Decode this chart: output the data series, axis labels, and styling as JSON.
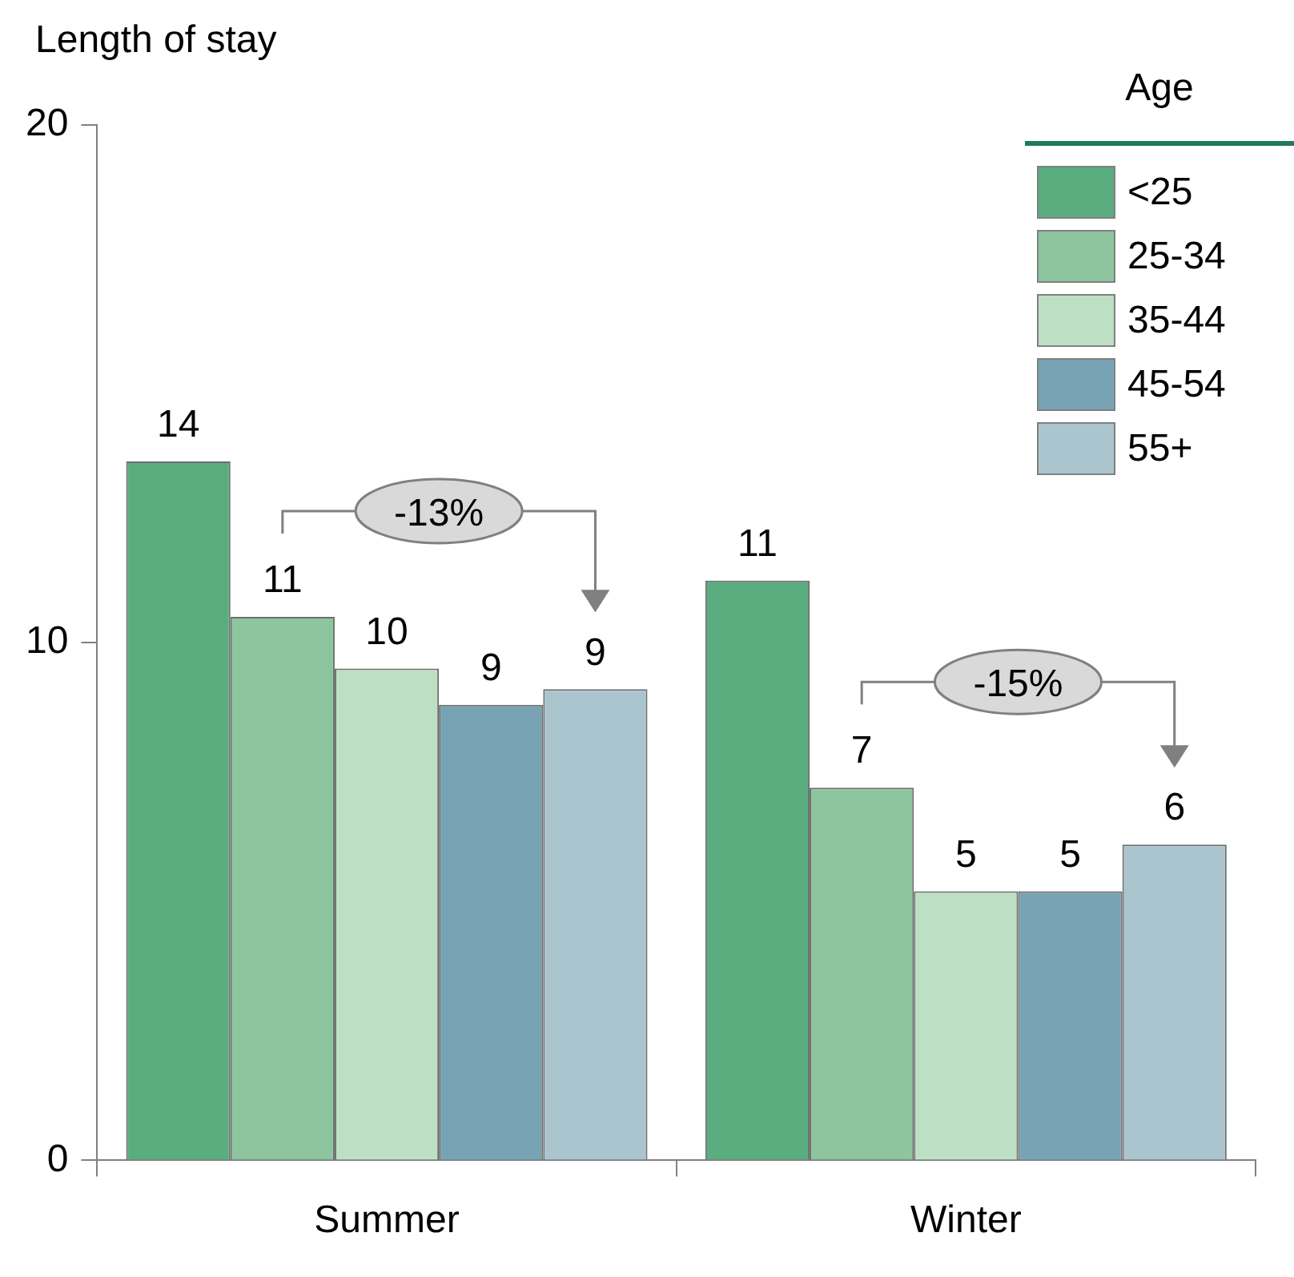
{
  "chart_data": {
    "type": "bar",
    "ylabel": "Length of stay",
    "legend_title": "Age",
    "categories": [
      "Summer",
      "Winter"
    ],
    "series": [
      {
        "name": "<25",
        "color": "#5aad7f",
        "values": [
          13.5,
          11.2
        ],
        "value_labels": [
          "14",
          "11"
        ]
      },
      {
        "name": "25-34",
        "color": "#8dc59e",
        "values": [
          10.5,
          7.2
        ],
        "value_labels": [
          "11",
          "7"
        ]
      },
      {
        "name": "35-44",
        "color": "#bde0c4",
        "values": [
          9.5,
          5.2
        ],
        "value_labels": [
          "10",
          "5"
        ]
      },
      {
        "name": "45-54",
        "color": "#78a3b4",
        "values": [
          8.8,
          5.2
        ],
        "value_labels": [
          "9",
          "5"
        ]
      },
      {
        "name": "55+",
        "color": "#abc5cf",
        "values": [
          9.1,
          6.1
        ],
        "value_labels": [
          "9",
          "6"
        ]
      }
    ],
    "ylim": [
      0,
      20
    ],
    "yticks": [
      0,
      10,
      20
    ],
    "grid": false,
    "legend": "top right",
    "annotations": [
      "-13%",
      "-15%"
    ]
  }
}
